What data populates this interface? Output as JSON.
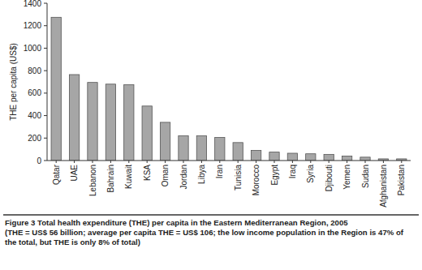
{
  "chart_data": {
    "type": "bar",
    "title": "Figure 3 Total health expenditure (THE) per capita in the Eastern Mediterranean Region, 2005",
    "subtitle": "(THE = US$ 56 billion; average per capita THE = US$ 106; the low income population in the Region is 47% of the total, but THE is only 8% of total)",
    "y_label": "THE per capita (US$)",
    "categories": [
      "Qatar",
      "UAE",
      "Lebanon",
      "Bahrain",
      "Kuwait",
      "KSA",
      "Oman",
      "Jordan",
      "Libya",
      "Iran",
      "Tunisia",
      "Morocco",
      "Egypt",
      "Iraq",
      "Syria",
      "Djibouti",
      "Yemen",
      "Sudan",
      "Afghanistan",
      "Pakistan"
    ],
    "values": [
      1275,
      765,
      695,
      680,
      675,
      485,
      340,
      220,
      220,
      205,
      160,
      90,
      75,
      65,
      60,
      55,
      40,
      30,
      15,
      15
    ],
    "color": "#a6a6a6",
    "ylim": [
      0,
      1400
    ],
    "yticks": [
      0,
      200,
      400,
      600,
      800,
      1000,
      1200,
      1400
    ],
    "grid": false
  }
}
